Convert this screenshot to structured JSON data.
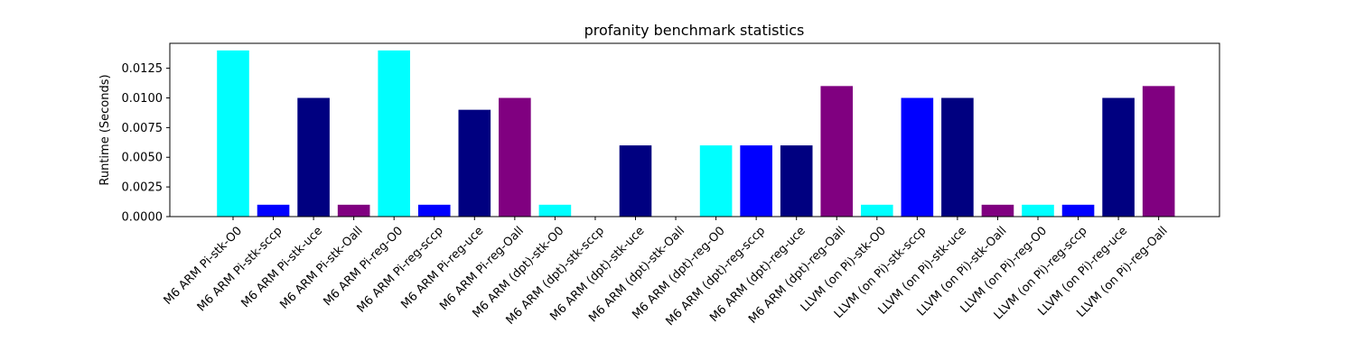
{
  "chart_data": {
    "type": "bar",
    "title": "profanity benchmark statistics",
    "xlabel": "",
    "ylabel": "Runtime (Seconds)",
    "ylim": [
      0,
      0.0146
    ],
    "y_ticks": [
      0.0,
      0.0025,
      0.005,
      0.0075,
      0.01,
      0.0125
    ],
    "y_tick_labels": [
      "0.0000",
      "0.0025",
      "0.0050",
      "0.0075",
      "0.0100",
      "0.0125"
    ],
    "grid": false,
    "categories": [
      "M6 ARM Pi-stk-O0",
      "M6 ARM Pi-stk-sccp",
      "M6 ARM Pi-stk-uce",
      "M6 ARM Pi-stk-Oall",
      "M6 ARM Pi-reg-O0",
      "M6 ARM Pi-reg-sccp",
      "M6 ARM Pi-reg-uce",
      "M6 ARM Pi-reg-Oall",
      "M6 ARM (dpt)-stk-O0",
      "M6 ARM (dpt)-stk-sccp",
      "M6 ARM (dpt)-stk-uce",
      "M6 ARM (dpt)-stk-Oall",
      "M6 ARM (dpt)-reg-O0",
      "M6 ARM (dpt)-reg-sccp",
      "M6 ARM (dpt)-reg-uce",
      "M6 ARM (dpt)-reg-Oall",
      "LLVM (on Pi)-stk-O0",
      "LLVM (on Pi)-stk-sccp",
      "LLVM (on Pi)-stk-uce",
      "LLVM (on Pi)-stk-Oall",
      "LLVM (on Pi)-reg-O0",
      "LLVM (on Pi)-reg-sccp",
      "LLVM (on Pi)-reg-uce",
      "LLVM (on Pi)-reg-Oall"
    ],
    "values": [
      0.014,
      0.001,
      0.01,
      0.001,
      0.014,
      0.001,
      0.009,
      0.01,
      0.001,
      0.0,
      0.006,
      0.0,
      0.006,
      0.006,
      0.006,
      0.011,
      0.001,
      0.01,
      0.01,
      0.001,
      0.001,
      0.001,
      0.01,
      0.011
    ],
    "colors": [
      "#00ffff",
      "#0000ff",
      "#000080",
      "#800080",
      "#00ffff",
      "#0000ff",
      "#000080",
      "#800080",
      "#00ffff",
      "#0000ff",
      "#000080",
      "#800080",
      "#00ffff",
      "#0000ff",
      "#000080",
      "#800080",
      "#00ffff",
      "#0000ff",
      "#000080",
      "#800080",
      "#00ffff",
      "#0000ff",
      "#000080",
      "#800080"
    ]
  }
}
